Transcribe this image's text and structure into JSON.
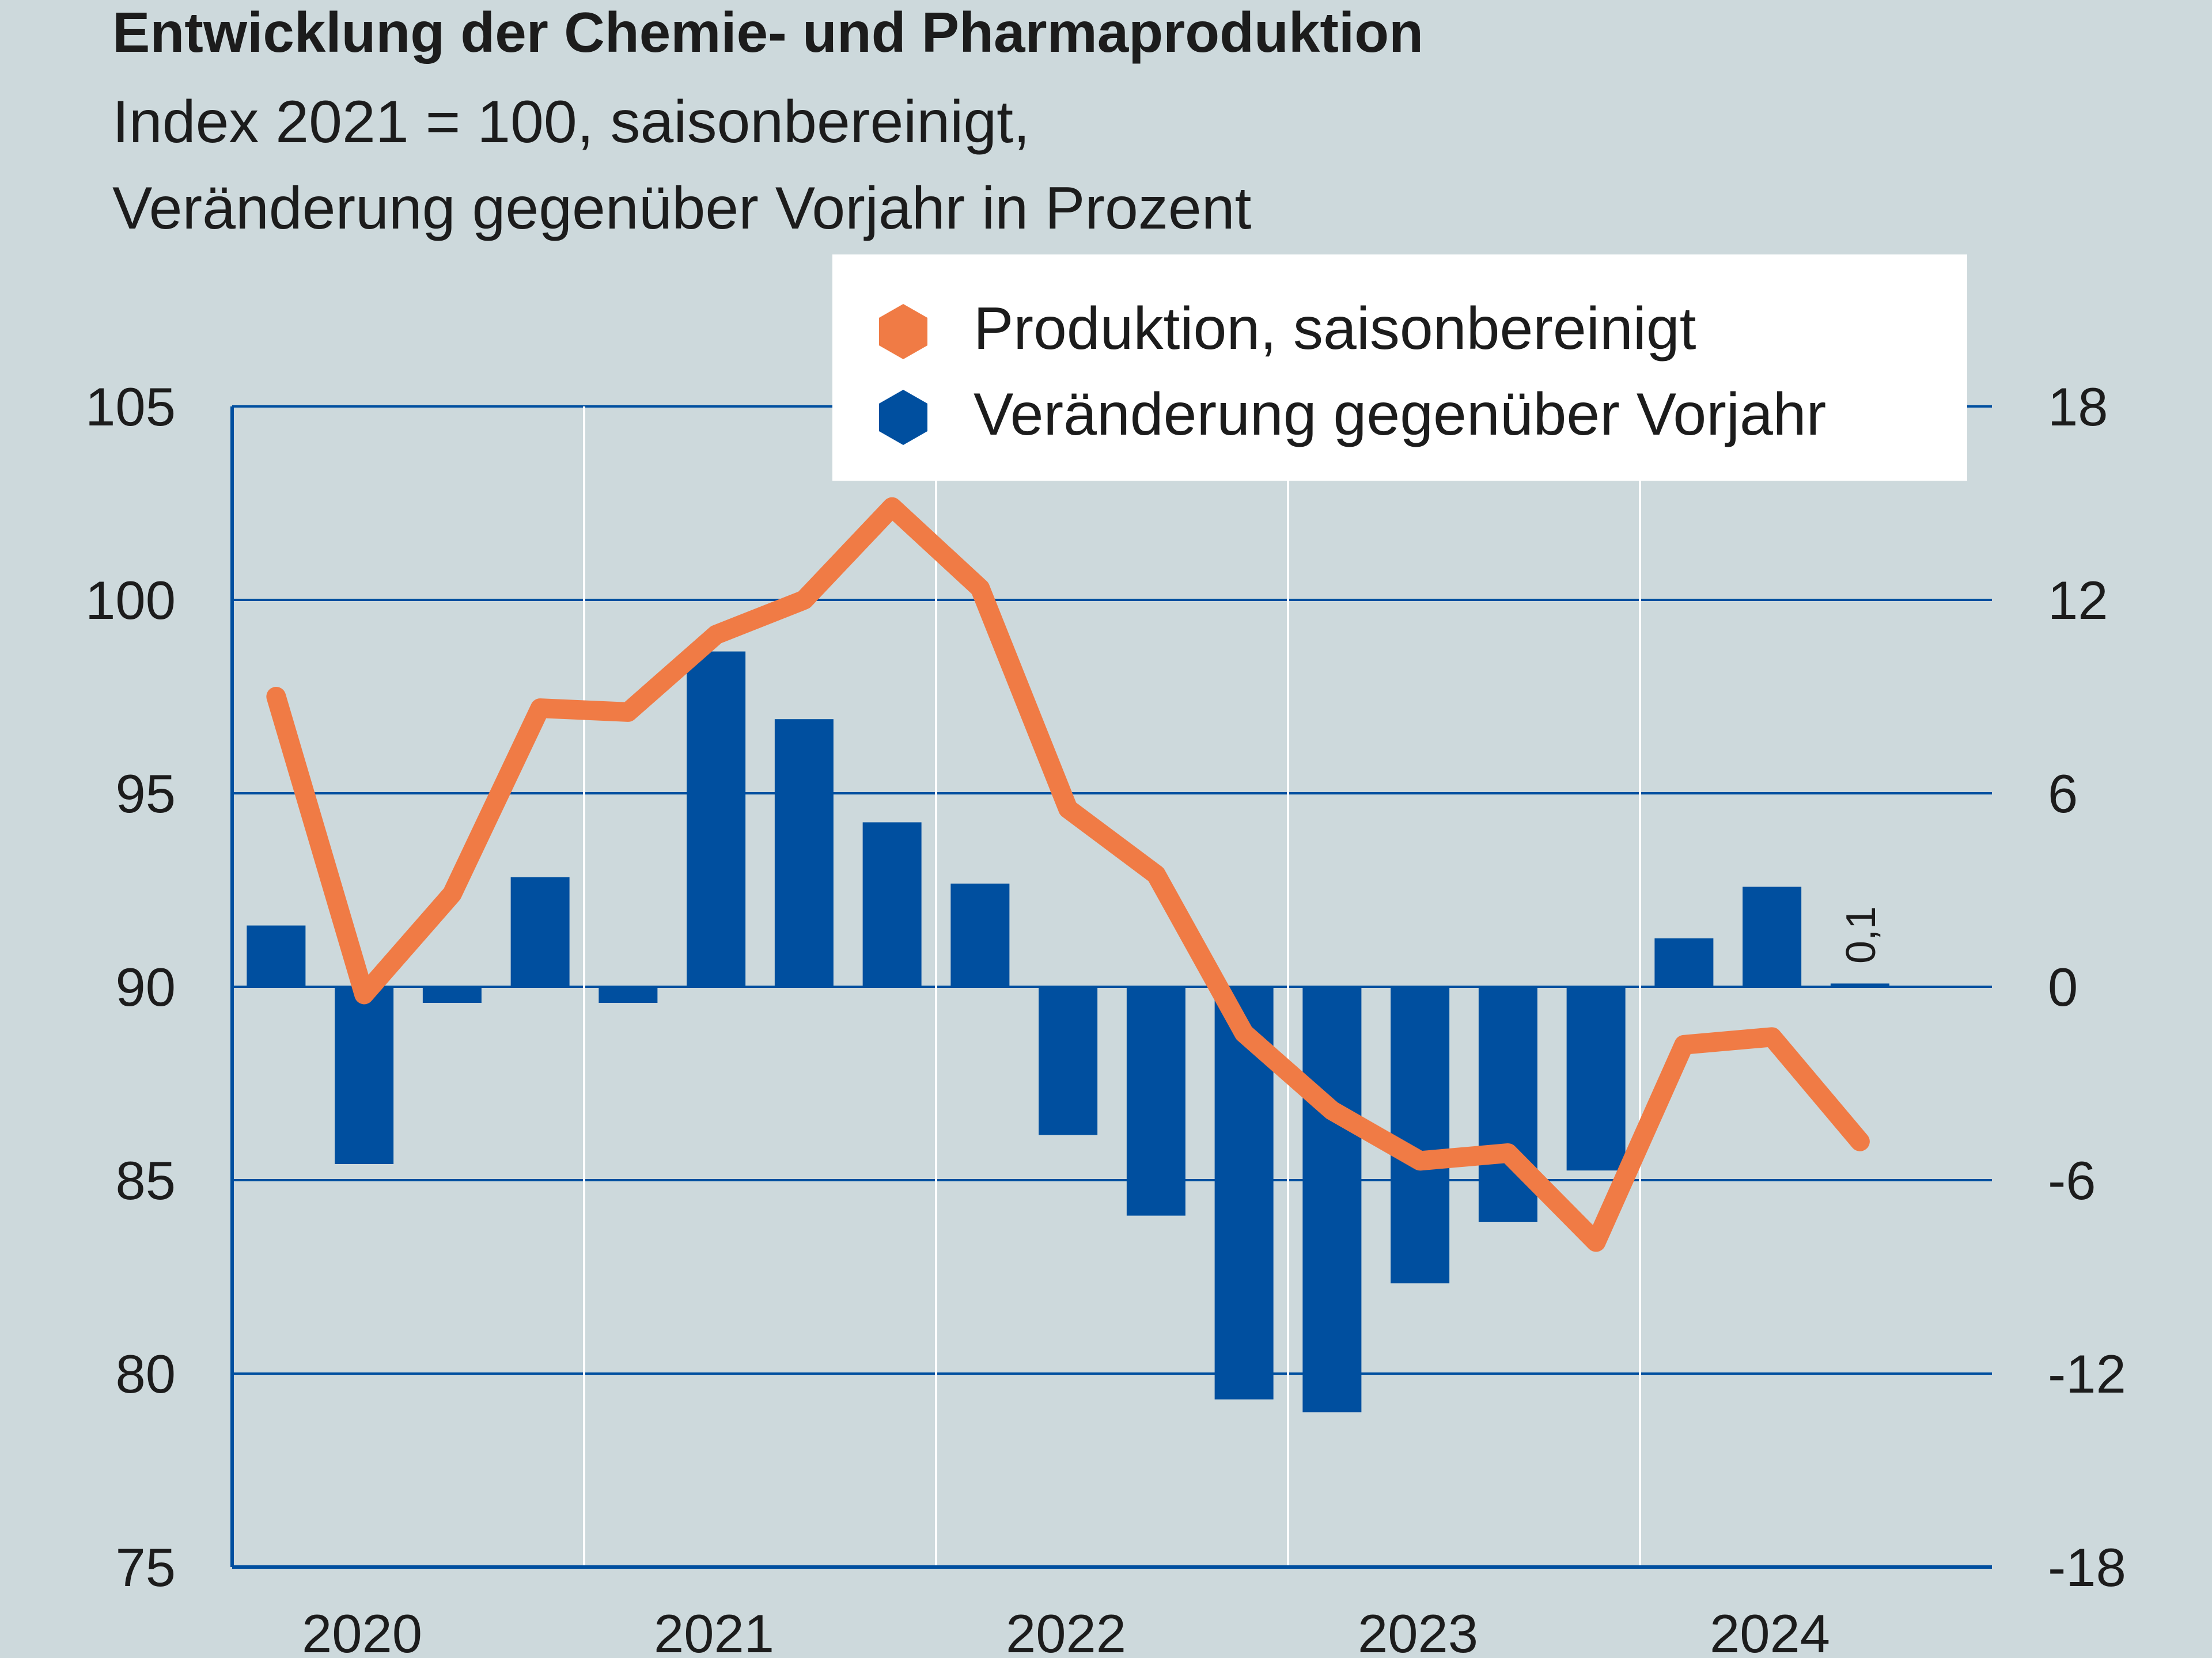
{
  "title": "Entwicklung der Chemie- und Pharmaproduktion",
  "subtitle_line1": "Index 2021 = 100, saisonbereinigt,",
  "subtitle_line2": "Veränderung gegenüber Vorjahr in Prozent",
  "colors": {
    "background": "#cdd9dc",
    "line": "#f07b45",
    "bars": "#004f9f",
    "axis": "#004f9f",
    "grid": "#ffffff"
  },
  "chart_data": {
    "type": "bar+line",
    "x_labels": [
      "2020",
      "2021",
      "2022",
      "2023",
      "2024"
    ],
    "quarters": [
      "2020 Q1",
      "2020 Q2",
      "2020 Q3",
      "2020 Q4",
      "2021 Q1",
      "2021 Q2",
      "2021 Q3",
      "2021 Q4",
      "2022 Q1",
      "2022 Q2",
      "2022 Q3",
      "2022 Q4",
      "2023 Q1",
      "2023 Q2",
      "2023 Q3",
      "2023 Q4",
      "2024 Q1",
      "2024 Q2",
      "2024 Q3"
    ],
    "left_axis": {
      "min": 75,
      "max": 105,
      "ticks": [
        "105",
        "100",
        "95",
        "90",
        "85",
        "80",
        "75"
      ]
    },
    "right_axis": {
      "min": -18,
      "max": 18,
      "ticks": [
        "18",
        "12",
        "6",
        "0",
        "-6",
        "-12",
        "-18"
      ]
    },
    "series": [
      {
        "name": "Produktion, saisonbereinigt",
        "axis": "left",
        "type": "line",
        "values": [
          97.5,
          89.8,
          92.4,
          97.2,
          97.1,
          99.1,
          100.0,
          102.4,
          100.3,
          94.6,
          92.9,
          88.8,
          86.8,
          85.5,
          85.7,
          83.4,
          88.5,
          88.7,
          86.0
        ]
      },
      {
        "name": "Veränderung gegenüber Vorjahr",
        "axis": "right",
        "type": "bar",
        "values": [
          1.9,
          -5.5,
          -0.5,
          3.4,
          -0.5,
          10.4,
          8.3,
          5.1,
          3.2,
          -4.6,
          -7.1,
          -12.8,
          -13.2,
          -9.2,
          -7.3,
          -5.7,
          1.5,
          3.1,
          0.1
        ]
      }
    ],
    "annotations": [
      {
        "quarter": "2024 Q3",
        "text": "0,1"
      }
    ]
  }
}
